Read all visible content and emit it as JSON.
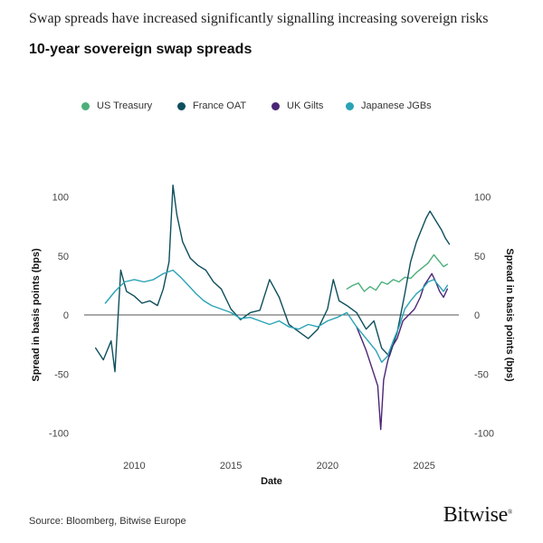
{
  "headline": "Swap spreads have increased significantly signalling increasing sovereign risks",
  "source": "Source: Bloomberg, Bitwise Europe",
  "logo": "Bitwise",
  "chart_data": {
    "type": "line",
    "title": "10-year sovereign swap spreads",
    "xlabel": "Date",
    "ylabel": "Spread in basis points (bps)",
    "ylabel_right": "Spread in basis points (bps)",
    "xlim": [
      2007.5,
      2026.7
    ],
    "ylim": [
      -105,
      125
    ],
    "xticks": [
      2010,
      2015,
      2020,
      2025
    ],
    "yticks": [
      -100,
      -50,
      0,
      50,
      100
    ],
    "legend_position": "top",
    "zero_line": true,
    "grid": false,
    "series": [
      {
        "name": "US Treasury",
        "color": "#4caf7a",
        "x": [
          2021.0,
          2021.3,
          2021.6,
          2021.9,
          2022.2,
          2022.5,
          2022.8,
          2023.1,
          2023.4,
          2023.7,
          2024.0,
          2024.3,
          2024.6,
          2024.9,
          2025.2,
          2025.5,
          2025.8,
          2026.0,
          2026.2
        ],
        "y": [
          22,
          25,
          27,
          20,
          24,
          21,
          28,
          26,
          30,
          28,
          32,
          31,
          36,
          40,
          44,
          51,
          45,
          41,
          43
        ]
      },
      {
        "name": "France OAT",
        "color": "#0e4f5c",
        "x": [
          2008.0,
          2008.4,
          2008.8,
          2009.0,
          2009.3,
          2009.6,
          2010.0,
          2010.4,
          2010.8,
          2011.2,
          2011.5,
          2011.8,
          2012.0,
          2012.2,
          2012.5,
          2012.9,
          2013.3,
          2013.7,
          2014.1,
          2014.5,
          2015.0,
          2015.5,
          2016.0,
          2016.5,
          2017.0,
          2017.5,
          2018.0,
          2018.5,
          2019.0,
          2019.5,
          2020.0,
          2020.3,
          2020.6,
          2021.0,
          2021.5,
          2022.0,
          2022.4,
          2022.8,
          2023.2,
          2023.6,
          2024.0,
          2024.3,
          2024.6,
          2024.9,
          2025.1,
          2025.3,
          2025.6,
          2025.9,
          2026.1,
          2026.3
        ],
        "y": [
          -28,
          -38,
          -22,
          -48,
          38,
          20,
          16,
          10,
          12,
          8,
          22,
          45,
          110,
          85,
          62,
          48,
          42,
          38,
          28,
          22,
          5,
          -4,
          2,
          4,
          30,
          15,
          -8,
          -14,
          -20,
          -12,
          5,
          30,
          12,
          8,
          2,
          -12,
          -5,
          -28,
          -35,
          -15,
          18,
          45,
          62,
          74,
          82,
          88,
          80,
          72,
          65,
          60
        ]
      },
      {
        "name": "UK Gilts",
        "color": "#4b2676",
        "x": [
          2021.5,
          2021.8,
          2022.0,
          2022.3,
          2022.6,
          2022.75,
          2022.9,
          2023.1,
          2023.3,
          2023.6,
          2023.9,
          2024.2,
          2024.5,
          2024.8,
          2025.0,
          2025.2,
          2025.4,
          2025.6,
          2025.8,
          2026.0,
          2026.2
        ],
        "y": [
          -10,
          -22,
          -30,
          -45,
          -60,
          -97,
          -55,
          -40,
          -28,
          -20,
          -5,
          0,
          5,
          15,
          25,
          30,
          35,
          28,
          20,
          15,
          22
        ]
      },
      {
        "name": "Japanese JGBs",
        "color": "#2aa3b5",
        "x": [
          2008.5,
          2009.0,
          2009.5,
          2010.0,
          2010.5,
          2011.0,
          2011.5,
          2012.0,
          2012.4,
          2012.8,
          2013.2,
          2013.6,
          2014.0,
          2014.5,
          2015.0,
          2015.5,
          2016.0,
          2016.5,
          2017.0,
          2017.5,
          2018.0,
          2018.5,
          2019.0,
          2019.5,
          2020.0,
          2020.5,
          2021.0,
          2021.5,
          2022.0,
          2022.5,
          2022.8,
          2023.1,
          2023.4,
          2023.7,
          2024.0,
          2024.3,
          2024.6,
          2024.9,
          2025.2,
          2025.5,
          2025.8,
          2026.0,
          2026.2
        ],
        "y": [
          10,
          20,
          28,
          30,
          28,
          30,
          35,
          38,
          32,
          25,
          18,
          12,
          8,
          5,
          2,
          -3,
          -2,
          -5,
          -8,
          -5,
          -10,
          -12,
          -8,
          -10,
          -5,
          -2,
          2,
          -10,
          -20,
          -30,
          -40,
          -35,
          -22,
          -10,
          5,
          12,
          18,
          22,
          28,
          30,
          24,
          20,
          25
        ]
      }
    ]
  }
}
